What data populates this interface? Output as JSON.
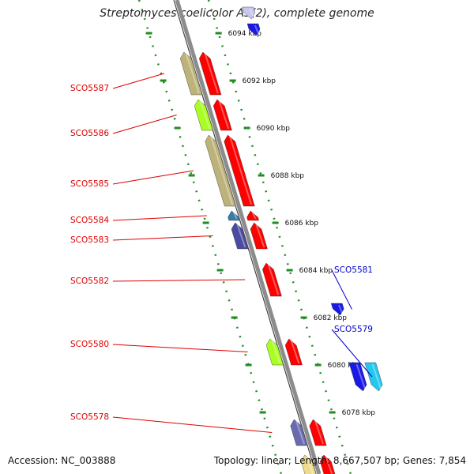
{
  "title": "Streptomyces coelicolor A3(2), complete genome",
  "footer": {
    "accession": "Accession: NC_003888",
    "summary": "Topology: linear; Length: 8,667,507 bp; Genes: 7,854"
  },
  "colors": {
    "backbone": "#8c8c8c",
    "scale_tick": "#228b22",
    "label_left": "#dd0000",
    "label_right": "#0000cc"
  },
  "scale": {
    "unit": "kbp",
    "ticks": [
      {
        "label": "6094 kbp",
        "kbp": 6094
      },
      {
        "label": "6092 kbp",
        "kbp": 6092
      },
      {
        "label": "6090 kbp",
        "kbp": 6090
      },
      {
        "label": "6088 kbp",
        "kbp": 6088
      },
      {
        "label": "6086 kbp",
        "kbp": 6086
      },
      {
        "label": "6084 kbp",
        "kbp": 6084
      },
      {
        "label": "6082 kbp",
        "kbp": 6082
      },
      {
        "label": "6080 kbp",
        "kbp": 6080
      },
      {
        "label": "6078 kbp",
        "kbp": 6078
      }
    ]
  },
  "genes": [
    {
      "name": "",
      "strand": "+",
      "start_kbp": 6095.1,
      "end_kbp": 6094.6,
      "color": "#c8c8ee",
      "track": "outer"
    },
    {
      "name": "",
      "strand": "+",
      "start_kbp": 6094.4,
      "end_kbp": 6093.9,
      "color": "#1a1ae6",
      "track": "outer"
    },
    {
      "name": "SCO5587",
      "strand": "-",
      "start_kbp": 6093.2,
      "end_kbp": 6091.4,
      "color": "#bdb37a",
      "track": "inner"
    },
    {
      "name": "",
      "strand": "-",
      "start_kbp": 6093.2,
      "end_kbp": 6091.4,
      "color": "#ff0000",
      "track": "outer"
    },
    {
      "name": "SCO5586",
      "strand": "-",
      "start_kbp": 6091.2,
      "end_kbp": 6089.9,
      "color": "#aaff22",
      "track": "inner"
    },
    {
      "name": "",
      "strand": "-",
      "start_kbp": 6091.2,
      "end_kbp": 6089.9,
      "color": "#ff0000",
      "track": "outer"
    },
    {
      "name": "SCO5585",
      "strand": "-",
      "start_kbp": 6089.7,
      "end_kbp": 6086.7,
      "color": "#bdb37a",
      "track": "inner"
    },
    {
      "name": "",
      "strand": "-",
      "start_kbp": 6089.7,
      "end_kbp": 6086.7,
      "color": "#ff0000",
      "track": "outer"
    },
    {
      "name": "SCO5584",
      "strand": "-",
      "start_kbp": 6086.5,
      "end_kbp": 6086.1,
      "color": "#3a7aa8",
      "track": "inner"
    },
    {
      "name": "",
      "strand": "-",
      "start_kbp": 6086.5,
      "end_kbp": 6086.1,
      "color": "#ff0000",
      "track": "outer"
    },
    {
      "name": "SCO5583",
      "strand": "-",
      "start_kbp": 6086.0,
      "end_kbp": 6084.9,
      "color": "#4a4aa0",
      "track": "inner"
    },
    {
      "name": "",
      "strand": "-",
      "start_kbp": 6086.0,
      "end_kbp": 6084.9,
      "color": "#ff0000",
      "track": "outer"
    },
    {
      "name": "SCO5582",
      "strand": "-",
      "start_kbp": 6084.3,
      "end_kbp": 6082.9,
      "color": "#ff0000",
      "track": "outer"
    },
    {
      "name": "SCO5581",
      "strand": "+",
      "start_kbp": 6082.6,
      "end_kbp": 6082.1,
      "color": "#1a1ae6",
      "track": "outer"
    },
    {
      "name": "SCO5580",
      "strand": "-",
      "start_kbp": 6081.1,
      "end_kbp": 6080.0,
      "color": "#aaff22",
      "track": "inner"
    },
    {
      "name": "",
      "strand": "-",
      "start_kbp": 6081.1,
      "end_kbp": 6080.0,
      "color": "#ff0000",
      "track": "outer"
    },
    {
      "name": "SCO5579",
      "strand": "+",
      "start_kbp": 6080.1,
      "end_kbp": 6078.9,
      "color": "#1a1ae6",
      "track": "outer"
    },
    {
      "name": "",
      "strand": "+",
      "start_kbp": 6080.1,
      "end_kbp": 6078.9,
      "color": "#22c8ee",
      "track": "outer2"
    },
    {
      "name": "SCO5578",
      "strand": "-",
      "start_kbp": 6077.7,
      "end_kbp": 6076.6,
      "color": "#6a6ab0",
      "track": "inner"
    },
    {
      "name": "",
      "strand": "-",
      "start_kbp": 6077.7,
      "end_kbp": 6076.6,
      "color": "#ff0000",
      "track": "outer"
    },
    {
      "name": "",
      "strand": "-",
      "start_kbp": 6076.2,
      "end_kbp": 6075.2,
      "color": "#eedc8c",
      "track": "inner"
    },
    {
      "name": "",
      "strand": "-",
      "start_kbp": 6076.2,
      "end_kbp": 6075.2,
      "color": "#ff0000",
      "track": "outer"
    }
  ],
  "labels_left": [
    "SCO5587",
    "SCO5586",
    "SCO5585",
    "SCO5584",
    "SCO5583",
    "SCO5582",
    "SCO5580",
    "SCO5578"
  ],
  "labels_right": [
    "SCO5581",
    "SCO5579"
  ]
}
